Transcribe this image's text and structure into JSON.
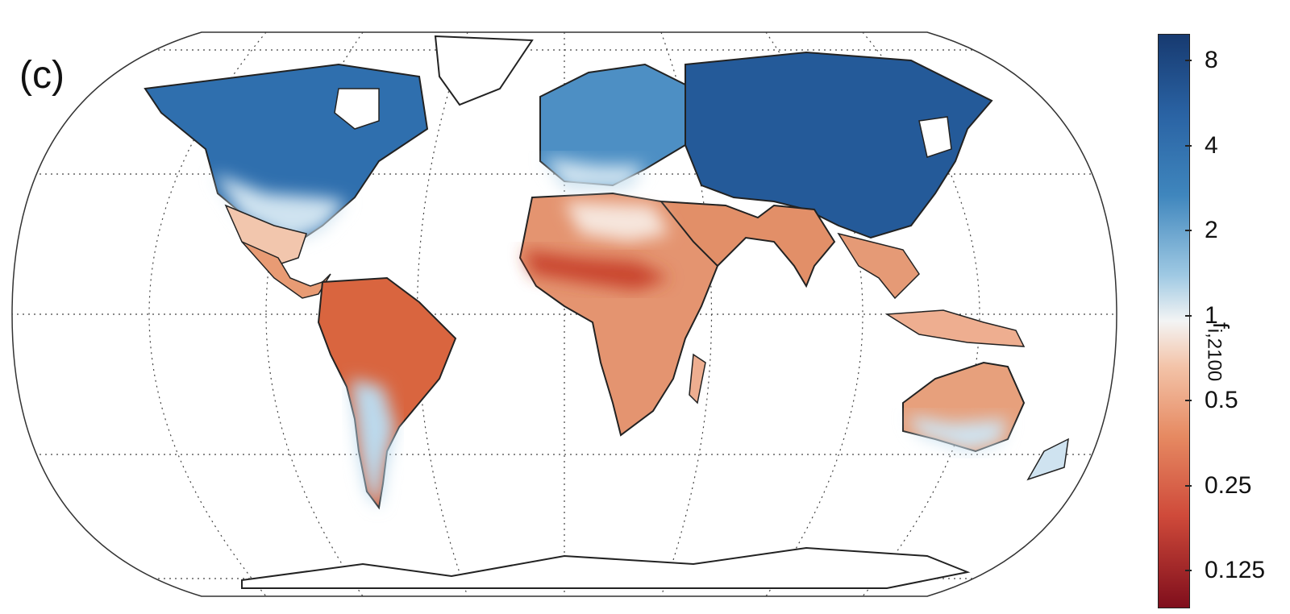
{
  "panel_label": "(c)",
  "colorbar": {
    "title_main": "f",
    "title_sub": "i,2100",
    "scale": "log2",
    "ticks": [
      "8",
      "4",
      "2",
      "1",
      "0.5",
      "0.25",
      "0.125"
    ],
    "tick_values": [
      8,
      4,
      2,
      1,
      0.5,
      0.25,
      0.125
    ],
    "colors": {
      "high": "#173a70",
      "mid": "#f3f4f4",
      "low": "#7f0e1c"
    }
  },
  "map": {
    "projection": "Robinson",
    "graticule": "dotted",
    "features": [
      "country-borders",
      "coastlines"
    ],
    "regions": [
      {
        "name": "north-america-north",
        "level": 6
      },
      {
        "name": "north-america-south",
        "level": 2.5
      },
      {
        "name": "central-america",
        "level": 0.5
      },
      {
        "name": "amazon",
        "level": 0.3
      },
      {
        "name": "south-america-south",
        "level": 1.8
      },
      {
        "name": "europe",
        "level": 3
      },
      {
        "name": "russia",
        "level": 7
      },
      {
        "name": "central-asia",
        "level": 5
      },
      {
        "name": "china",
        "level": 5
      },
      {
        "name": "sahara",
        "level": 1.2
      },
      {
        "name": "sahel",
        "level": 0.28
      },
      {
        "name": "southern-africa",
        "level": 0.55
      },
      {
        "name": "india",
        "level": 0.45
      },
      {
        "name": "southeast-asia",
        "level": 0.5
      },
      {
        "name": "australia-north",
        "level": 0.45
      },
      {
        "name": "australia-south",
        "level": 1.5
      },
      {
        "name": "antarctica",
        "level": 1
      }
    ]
  }
}
